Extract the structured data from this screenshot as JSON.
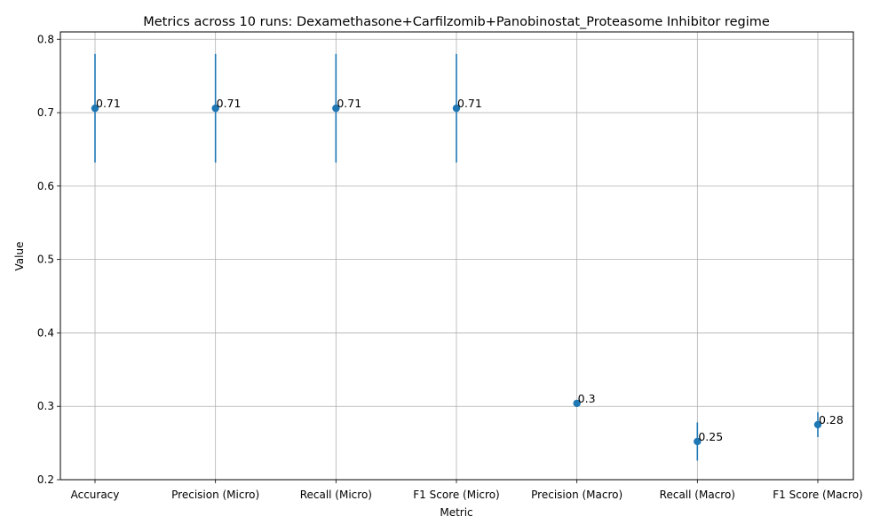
{
  "chart_data": {
    "type": "scatter",
    "title": "Metrics across 10 runs: Dexamethasone+Carfilzomib+Panobinostat_Proteasome Inhibitor regime",
    "xlabel": "Metric",
    "ylabel": "Value",
    "categories": [
      "Accuracy",
      "Precision (Micro)",
      "Recall (Micro)",
      "F1 Score (Micro)",
      "Precision (Macro)",
      "Recall (Macro)",
      "F1 Score (Macro)"
    ],
    "values": [
      0.706,
      0.706,
      0.706,
      0.706,
      0.304,
      0.252,
      0.275
    ],
    "error": [
      0.074,
      0.074,
      0.074,
      0.074,
      0.0,
      0.026,
      0.017
    ],
    "data_labels": [
      "0.71",
      "0.71",
      "0.71",
      "0.71",
      "0.3",
      "0.25",
      "0.28"
    ],
    "ylim": [
      0.2,
      0.81
    ],
    "yticks": [
      0.2,
      0.3,
      0.4,
      0.5,
      0.6,
      0.7,
      0.8
    ],
    "ytick_labels": [
      "0.2",
      "0.3",
      "0.4",
      "0.5",
      "0.6",
      "0.7",
      "0.8"
    ],
    "grid": true,
    "color": "#1f77b4"
  }
}
